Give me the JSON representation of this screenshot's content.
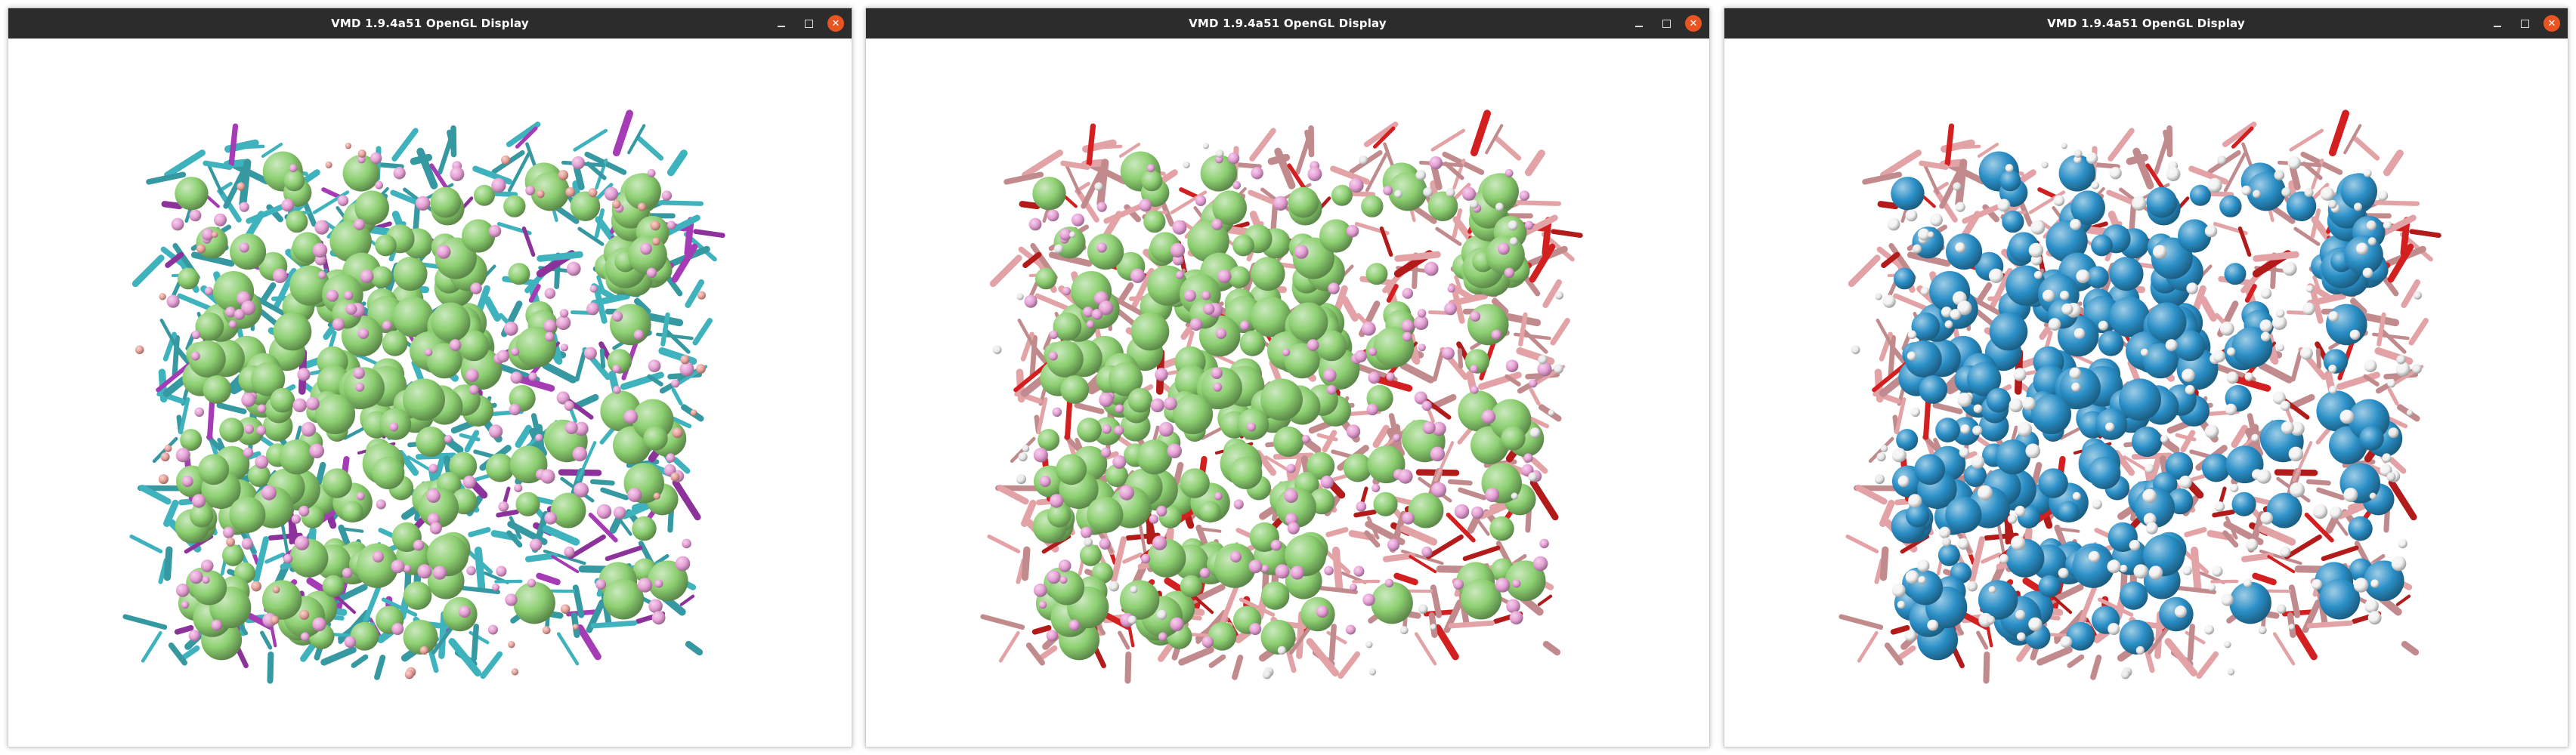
{
  "windows": [
    {
      "title": "VMD 1.9.4a51 OpenGL Display",
      "representation": "CPK-licorice",
      "colors": {
        "bond_primary": "#3fb3bd",
        "bond_secondary": "#a53bb5",
        "sphere_large": "#8ccf70",
        "sphere_small": "#e7a0d6",
        "sphere_tiny": "#e8a29a"
      }
    },
    {
      "title": "VMD 1.9.4a51 OpenGL Display",
      "representation": "CPK-licorice",
      "colors": {
        "bond_primary": "#e3a3a6",
        "bond_secondary": "#d31f1f",
        "sphere_large": "#8ccf70",
        "sphere_small": "#e7a0d6",
        "sphere_tiny": "#e9e9e9"
      }
    },
    {
      "title": "VMD 1.9.4a51 OpenGL Display",
      "representation": "CPK-licorice",
      "colors": {
        "bond_primary": "#e3a3a6",
        "bond_secondary": "#d31f1f",
        "sphere_large": "#2a8fc7",
        "sphere_small": "#f2f2f2",
        "sphere_tiny": "#e9e9e9"
      }
    }
  ],
  "controls": {
    "minimize_icon": "minimize-icon",
    "maximize_icon": "maximize-icon",
    "close_icon": "close-icon"
  }
}
